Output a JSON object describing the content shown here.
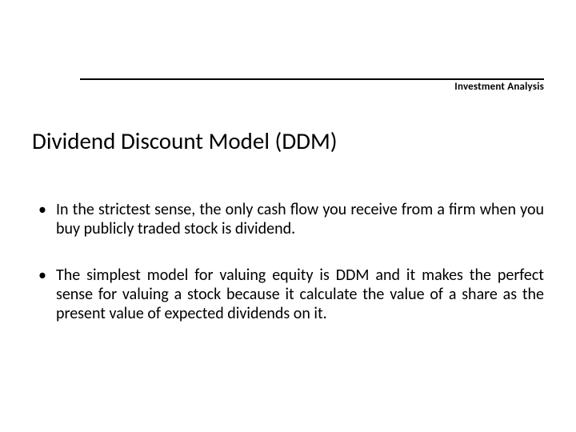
{
  "header": {
    "label": "Investment Analysis"
  },
  "title": "Dividend Discount Model (DDM)",
  "bullets": [
    "In the strictest sense, the only cash flow you receive from a firm when you buy publicly traded stock is dividend.",
    "The simplest model for valuing equity is DDM and it makes the perfect sense for valuing a stock because it calculate the value of a share as the present value of expected dividends on it."
  ],
  "style": {
    "background_color": "#ffffff",
    "text_color": "#000000",
    "rule_color": "#000000",
    "title_fontsize": 29,
    "body_fontsize": 20,
    "header_fontsize": 13,
    "font_family": "Calibri"
  }
}
